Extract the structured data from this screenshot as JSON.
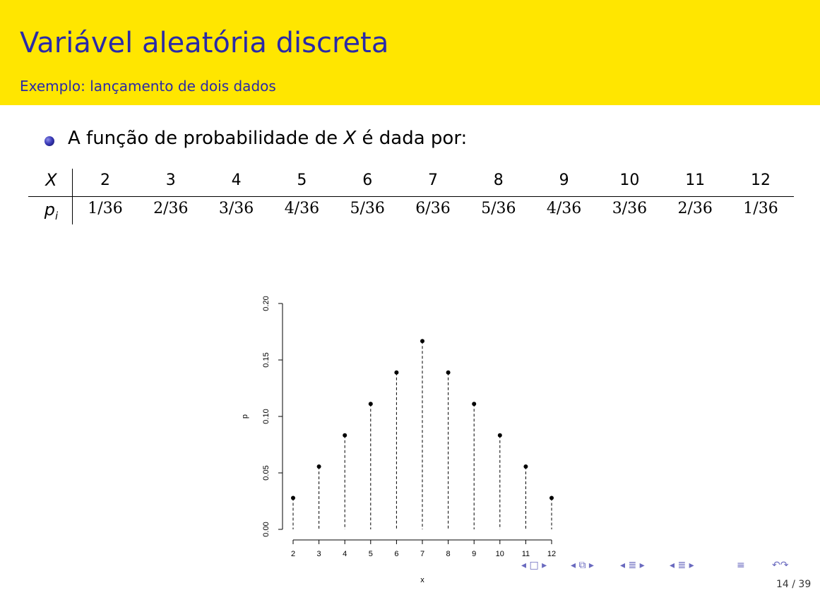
{
  "header": {
    "title": "Variável aleatória discreta",
    "subtitle": "Exemplo: lançamento de dois dados"
  },
  "bullet": {
    "text_before": "A função de probabilidade de ",
    "variable": "X",
    "text_after": " é dada por:"
  },
  "table": {
    "row1_label": "X",
    "row2_label": "p",
    "row2_label_sub": "i",
    "x_values": [
      "2",
      "3",
      "4",
      "5",
      "6",
      "7",
      "8",
      "9",
      "10",
      "11",
      "12"
    ],
    "p_values": [
      "1/36",
      "2/36",
      "3/36",
      "4/36",
      "5/36",
      "6/36",
      "5/36",
      "4/36",
      "3/36",
      "2/36",
      "1/36"
    ]
  },
  "chart_data": {
    "type": "scatter",
    "title": "",
    "xlabel": "x",
    "ylabel": "p",
    "x": [
      2,
      3,
      4,
      5,
      6,
      7,
      8,
      9,
      10,
      11,
      12
    ],
    "y": [
      0.0278,
      0.0556,
      0.0833,
      0.1111,
      0.1389,
      0.1667,
      0.1389,
      0.1111,
      0.0833,
      0.0556,
      0.0278
    ],
    "xlim": [
      2,
      12
    ],
    "ylim": [
      0,
      0.2
    ],
    "x_ticks": [
      "2",
      "3",
      "4",
      "5",
      "6",
      "7",
      "8",
      "9",
      "10",
      "11",
      "12"
    ],
    "y_ticks": [
      "0.00",
      "0.05",
      "0.10",
      "0.15",
      "0.20"
    ],
    "style": "points with dashed vertical lines to zero",
    "grid": false,
    "point_color": "#000000"
  },
  "nav": {
    "icons": [
      "nav-first-icon",
      "nav-frame-icon",
      "nav-section-icon",
      "nav-subsection-icon",
      "nav-align-icon",
      "nav-search-icon"
    ],
    "glyphs": [
      "◂ □ ▸",
      "◂ ⧉ ▸",
      "◂ ≣ ▸",
      "◂ ≣ ▸",
      "≡",
      "↶↷"
    ]
  },
  "footer": {
    "page": "14 / 39"
  },
  "colors": {
    "header_bg": "#ffe600",
    "title": "#2a2aa8",
    "nav": "#6a6abf"
  }
}
